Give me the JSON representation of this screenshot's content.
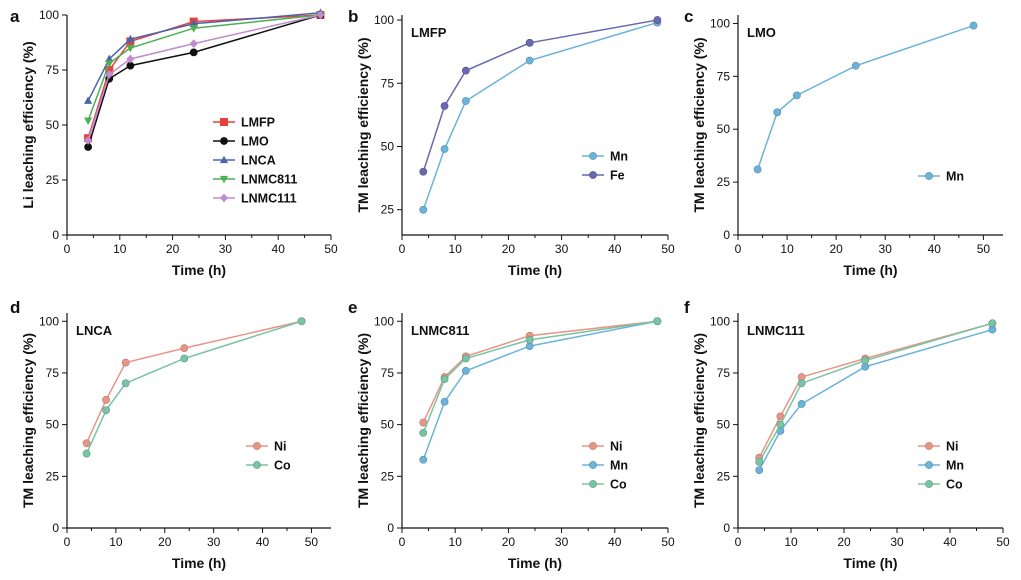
{
  "chart_data": [
    {
      "type": "line",
      "panel_label": "a",
      "title": "",
      "xlabel": "Time (h)",
      "ylabel": "Li leaching efficiency (%)",
      "xlim": [
        0,
        50
      ],
      "ylim": [
        0,
        100
      ],
      "xticks": [
        "0",
        "10",
        "20",
        "30",
        "40",
        "50"
      ],
      "yticks": [
        "0",
        "25",
        "50",
        "75",
        "100"
      ],
      "legend_position": "center-right",
      "x": [
        4,
        8,
        12,
        24,
        48
      ],
      "series": [
        {
          "name": "LMFP",
          "color": "#e8413a",
          "marker": "square",
          "values": [
            44,
            75,
            88,
            97,
            100
          ]
        },
        {
          "name": "LMO",
          "color": "#111111",
          "marker": "circle",
          "values": [
            40,
            71,
            77,
            83,
            100
          ]
        },
        {
          "name": "LNCA",
          "color": "#4a64b0",
          "marker": "triangle-up",
          "values": [
            61,
            80,
            89,
            96,
            101
          ]
        },
        {
          "name": "LNMC811",
          "color": "#4caf50",
          "marker": "triangle-down",
          "values": [
            52,
            78,
            85,
            94,
            100
          ]
        },
        {
          "name": "LNMC111",
          "color": "#c08bd0",
          "marker": "diamond",
          "values": [
            43,
            73,
            80,
            87,
            100
          ]
        }
      ]
    },
    {
      "type": "line",
      "panel_label": "b",
      "title": "LMFP",
      "xlabel": "Time (h)",
      "ylabel": "TM leaching efficiency (%)",
      "xlim": [
        0,
        50
      ],
      "ylim": [
        15,
        102
      ],
      "xticks": [
        "0",
        "10",
        "20",
        "30",
        "40",
        "50"
      ],
      "yticks": [
        "25",
        "50",
        "75",
        "100"
      ],
      "legend_position": "center-right",
      "x": [
        4,
        8,
        12,
        24,
        48
      ],
      "series": [
        {
          "name": "Mn",
          "color": "#6bb3da",
          "marker": "circle",
          "values": [
            25,
            49,
            68,
            84,
            99
          ]
        },
        {
          "name": "Fe",
          "color": "#6a68b0",
          "marker": "circle",
          "values": [
            40,
            66,
            80,
            91,
            100
          ]
        }
      ]
    },
    {
      "type": "line",
      "panel_label": "c",
      "title": "LMO",
      "xlabel": "Time (h)",
      "ylabel": "TM leaching efficiency (%)",
      "xlim": [
        0,
        54
      ],
      "ylim": [
        0,
        104
      ],
      "xticks": [
        "0",
        "10",
        "20",
        "30",
        "40",
        "50"
      ],
      "yticks": [
        "0",
        "25",
        "50",
        "75",
        "100"
      ],
      "legend_position": "center-right",
      "x": [
        4,
        8,
        12,
        24,
        48
      ],
      "series": [
        {
          "name": "Mn",
          "color": "#6bb3da",
          "marker": "circle",
          "values": [
            31,
            58,
            66,
            80,
            99
          ]
        }
      ]
    },
    {
      "type": "line",
      "panel_label": "d",
      "title": "LNCA",
      "xlabel": "Time (h)",
      "ylabel": "TM leaching efficiency (%)",
      "xlim": [
        0,
        54
      ],
      "ylim": [
        0,
        104
      ],
      "xticks": [
        "0",
        "10",
        "20",
        "30",
        "40",
        "50"
      ],
      "yticks": [
        "0",
        "25",
        "50",
        "75",
        "100"
      ],
      "legend_position": "bottom-right",
      "x": [
        4,
        8,
        12,
        24,
        48
      ],
      "series": [
        {
          "name": "Ni",
          "color": "#e89587",
          "marker": "circle",
          "values": [
            41,
            62,
            80,
            87,
            100
          ]
        },
        {
          "name": "Co",
          "color": "#78c4a4",
          "marker": "circle",
          "values": [
            36,
            57,
            70,
            82,
            100
          ]
        }
      ]
    },
    {
      "type": "line",
      "panel_label": "e",
      "title": "LNMC811",
      "xlabel": "Time (h)",
      "ylabel": "TM leaching efficiency (%)",
      "xlim": [
        0,
        50
      ],
      "ylim": [
        0,
        104
      ],
      "xticks": [
        "0",
        "10",
        "20",
        "30",
        "40",
        "50"
      ],
      "yticks": [
        "0",
        "25",
        "50",
        "75",
        "100"
      ],
      "legend_position": "bottom-right",
      "x": [
        4,
        8,
        12,
        24,
        48
      ],
      "series": [
        {
          "name": "Ni",
          "color": "#e89587",
          "marker": "circle",
          "values": [
            51,
            73,
            83,
            93,
            100
          ]
        },
        {
          "name": "Mn",
          "color": "#6bb3da",
          "marker": "circle",
          "values": [
            33,
            61,
            76,
            88,
            100
          ]
        },
        {
          "name": "Co",
          "color": "#78c4a4",
          "marker": "circle",
          "values": [
            46,
            72,
            82,
            91,
            100
          ]
        }
      ]
    },
    {
      "type": "line",
      "panel_label": "f",
      "title": "LNMC111",
      "xlabel": "Time (h)",
      "ylabel": "TM leaching efficiency (%)",
      "xlim": [
        0,
        50
      ],
      "ylim": [
        0,
        104
      ],
      "xticks": [
        "0",
        "10",
        "20",
        "30",
        "40",
        "50"
      ],
      "yticks": [
        "0",
        "25",
        "50",
        "75",
        "100"
      ],
      "legend_position": "bottom-right",
      "x": [
        4,
        8,
        12,
        24,
        48
      ],
      "series": [
        {
          "name": "Ni",
          "color": "#e89587",
          "marker": "circle",
          "values": [
            34,
            54,
            73,
            82,
            99
          ]
        },
        {
          "name": "Mn",
          "color": "#6bb3da",
          "marker": "circle",
          "values": [
            28,
            47,
            60,
            78,
            96
          ]
        },
        {
          "name": "Co",
          "color": "#78c4a4",
          "marker": "circle",
          "values": [
            32,
            50,
            70,
            81,
            99
          ]
        }
      ]
    }
  ]
}
